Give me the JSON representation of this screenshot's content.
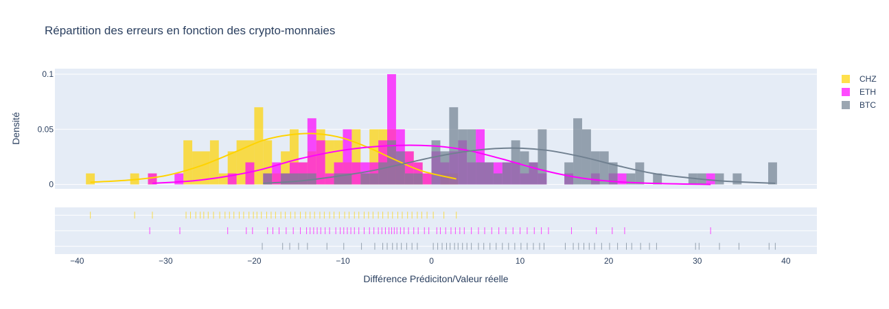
{
  "chart_data": {
    "type": "histogram",
    "title": "Répartition des erreurs en fonction des crypto-monnaies",
    "xlabel": "Différence Prédiciton/Valeur réelle",
    "ylabel": "Densité",
    "xlim": [
      -42.5,
      43.5
    ],
    "ylim": [
      -0.004,
      0.105
    ],
    "x_ticks": [
      "−40",
      "−30",
      "−20",
      "−10",
      "0",
      "10",
      "20",
      "30",
      "40"
    ],
    "x_tick_values": [
      -40,
      -30,
      -20,
      -10,
      0,
      10,
      20,
      30,
      40
    ],
    "y_ticks": [
      "0",
      "0.05",
      "0.1"
    ],
    "y_tick_values": [
      0,
      0.05,
      0.1
    ],
    "grid": true,
    "legend_position": "top-right",
    "bin_width": 1,
    "series": [
      {
        "name": "CHZ",
        "color": "#FFD300",
        "bins": [
          [
            -38.5,
            0.01
          ],
          [
            -33.5,
            0.01
          ],
          [
            -31.5,
            0.01
          ],
          [
            -27.5,
            0.04
          ],
          [
            -26.5,
            0.03
          ],
          [
            -25.5,
            0.03
          ],
          [
            -24.5,
            0.04
          ],
          [
            -23.5,
            0.01
          ],
          [
            -22.5,
            0.03
          ],
          [
            -21.5,
            0.04
          ],
          [
            -20.5,
            0.04
          ],
          [
            -19.5,
            0.07
          ],
          [
            -18.5,
            0.04
          ],
          [
            -17.5,
            0.01
          ],
          [
            -16.5,
            0.03
          ],
          [
            -15.5,
            0.05
          ],
          [
            -14.5,
            0.02
          ],
          [
            -13.5,
            0.03
          ],
          [
            -12.5,
            0.05
          ],
          [
            -11.5,
            0.04
          ],
          [
            -10.5,
            0.04
          ],
          [
            -9.5,
            0.02
          ],
          [
            -8.5,
            0.05
          ],
          [
            -7.5,
            0.01
          ],
          [
            -6.5,
            0.05
          ],
          [
            -5.5,
            0.05
          ],
          [
            -4.5,
            0.05
          ],
          [
            -3.5,
            0.02
          ],
          [
            -2.5,
            0.03
          ],
          [
            -1.5,
            0.02
          ],
          [
            -0.5,
            0.01
          ],
          [
            1.5,
            0.01
          ],
          [
            2.5,
            0.01
          ]
        ],
        "kde": [
          [
            -38.5,
            0.002
          ],
          [
            -34,
            0.004
          ],
          [
            -30,
            0.008
          ],
          [
            -26,
            0.017
          ],
          [
            -22,
            0.03
          ],
          [
            -19,
            0.04
          ],
          [
            -16,
            0.045
          ],
          [
            -13,
            0.046
          ],
          [
            -10,
            0.042
          ],
          [
            -7,
            0.033
          ],
          [
            -4,
            0.022
          ],
          [
            -1,
            0.012
          ],
          [
            2.8,
            0.005
          ]
        ],
        "rug": [
          -38.5,
          -33.5,
          -31.5,
          -27.7,
          -27.2,
          -26.6,
          -26.1,
          -25.7,
          -25.2,
          -24.6,
          -23.9,
          -23.3,
          -22.8,
          -22.3,
          -21.7,
          -21.2,
          -20.6,
          -20.1,
          -19.7,
          -19.2,
          -18.6,
          -18.1,
          -17.6,
          -17.0,
          -16.5,
          -15.9,
          -15.4,
          -14.8,
          -14.2,
          -13.7,
          -13.2,
          -12.6,
          -12.1,
          -11.5,
          -11.0,
          -10.4,
          -9.8,
          -9.3,
          -8.7,
          -8.2,
          -7.6,
          -7.1,
          -6.6,
          -6.0,
          -5.5,
          -4.9,
          -4.4,
          -3.8,
          -3.3,
          -2.7,
          -2.2,
          -1.6,
          -1.1,
          -0.5,
          0.2,
          1.4,
          2.8
        ]
      },
      {
        "name": "ETH",
        "color": "#FF00FF",
        "bins": [
          [
            -31.5,
            0.01
          ],
          [
            -28.5,
            0.01
          ],
          [
            -22.5,
            0.01
          ],
          [
            -20.5,
            0.02
          ],
          [
            -18.5,
            0.01
          ],
          [
            -17.5,
            0.02
          ],
          [
            -16.5,
            0.01
          ],
          [
            -15.5,
            0.02
          ],
          [
            -14.5,
            0.02
          ],
          [
            -13.5,
            0.06
          ],
          [
            -12.5,
            0.04
          ],
          [
            -11.5,
            0.01
          ],
          [
            -10.5,
            0.02
          ],
          [
            -9.5,
            0.05
          ],
          [
            -8.5,
            0.02
          ],
          [
            -7.5,
            0.02
          ],
          [
            -6.5,
            0.02
          ],
          [
            -5.5,
            0.04
          ],
          [
            -4.5,
            0.1
          ],
          [
            -3.5,
            0.05
          ],
          [
            -2.5,
            0.03
          ],
          [
            -1.5,
            0.02
          ],
          [
            -0.5,
            0.01
          ],
          [
            0.5,
            0.03
          ],
          [
            1.5,
            0.02
          ],
          [
            2.5,
            0.03
          ],
          [
            3.5,
            0.04
          ],
          [
            4.5,
            0.02
          ],
          [
            5.5,
            0.05
          ],
          [
            6.5,
            0.02
          ],
          [
            7.5,
            0.02
          ],
          [
            8.5,
            0.02
          ],
          [
            9.5,
            0.02
          ],
          [
            10.5,
            0.01
          ],
          [
            11.5,
            0.02
          ],
          [
            12.5,
            0.01
          ],
          [
            15.5,
            0.01
          ],
          [
            18.5,
            0.01
          ],
          [
            20.5,
            0.01
          ],
          [
            21.5,
            0.01
          ],
          [
            31.5,
            0.01
          ]
        ],
        "kde": [
          [
            -31.5,
            0.001
          ],
          [
            -26,
            0.004
          ],
          [
            -20,
            0.012
          ],
          [
            -15,
            0.023
          ],
          [
            -10,
            0.031
          ],
          [
            -5,
            0.035
          ],
          [
            0,
            0.035
          ],
          [
            4,
            0.031
          ],
          [
            8,
            0.023
          ],
          [
            12,
            0.014
          ],
          [
            16,
            0.007
          ],
          [
            20,
            0.003
          ],
          [
            25,
            0.001
          ],
          [
            31.5,
            0.0
          ]
        ],
        "rug": [
          -31.8,
          -28.4,
          -23.0,
          -20.9,
          -20.2,
          -18.5,
          -17.9,
          -17.2,
          -16.4,
          -15.6,
          -14.8,
          -14.1,
          -13.7,
          -13.3,
          -12.9,
          -12.5,
          -12.0,
          -11.5,
          -10.8,
          -10.3,
          -9.9,
          -9.5,
          -9.1,
          -8.7,
          -8.2,
          -7.6,
          -7.0,
          -6.5,
          -6.0,
          -5.6,
          -5.2,
          -4.8,
          -4.5,
          -4.2,
          -3.9,
          -3.5,
          -3.1,
          -2.6,
          -2.0,
          -1.5,
          -0.8,
          -0.3,
          0.6,
          1.0,
          1.6,
          2.2,
          2.7,
          3.2,
          3.7,
          4.5,
          5.3,
          6.0,
          6.8,
          7.6,
          8.4,
          9.2,
          10.0,
          10.8,
          11.6,
          12.4,
          13.2,
          15.8,
          18.6,
          20.4,
          21.8,
          31.5
        ]
      },
      {
        "name": "BTC",
        "color": "#708090",
        "bins": [
          [
            -18.5,
            0.01
          ],
          [
            -16.5,
            0.01
          ],
          [
            -15.5,
            0.01
          ],
          [
            -14.5,
            0.01
          ],
          [
            -13.5,
            0.01
          ],
          [
            -10.5,
            0.01
          ],
          [
            -9.5,
            0.01
          ],
          [
            -7.5,
            0.01
          ],
          [
            -6.5,
            0.01
          ],
          [
            -5.5,
            0.02
          ],
          [
            -4.5,
            0.04
          ],
          [
            -3.5,
            0.03
          ],
          [
            -2.5,
            0.01
          ],
          [
            -1.5,
            0.01
          ],
          [
            0.5,
            0.04
          ],
          [
            1.5,
            0.03
          ],
          [
            2.5,
            0.07
          ],
          [
            3.5,
            0.05
          ],
          [
            4.5,
            0.05
          ],
          [
            5.5,
            0.02
          ],
          [
            6.5,
            0.02
          ],
          [
            7.5,
            0.01
          ],
          [
            8.5,
            0.02
          ],
          [
            9.5,
            0.04
          ],
          [
            10.5,
            0.03
          ],
          [
            11.5,
            0.02
          ],
          [
            12.5,
            0.05
          ],
          [
            15.5,
            0.02
          ],
          [
            16.5,
            0.06
          ],
          [
            17.5,
            0.05
          ],
          [
            18.5,
            0.03
          ],
          [
            19.5,
            0.03
          ],
          [
            20.5,
            0.02
          ],
          [
            22.5,
            0.01
          ],
          [
            23.5,
            0.02
          ],
          [
            25.5,
            0.01
          ],
          [
            29.5,
            0.01
          ],
          [
            30.5,
            0.01
          ],
          [
            32.5,
            0.01
          ],
          [
            34.5,
            0.01
          ],
          [
            38.5,
            0.02
          ]
        ],
        "kde": [
          [
            -19,
            0.001
          ],
          [
            -15,
            0.003
          ],
          [
            -11,
            0.007
          ],
          [
            -7,
            0.012
          ],
          [
            -3,
            0.019
          ],
          [
            1,
            0.026
          ],
          [
            5,
            0.031
          ],
          [
            9,
            0.033
          ],
          [
            13,
            0.031
          ],
          [
            17,
            0.025
          ],
          [
            21,
            0.017
          ],
          [
            25,
            0.01
          ],
          [
            29,
            0.006
          ],
          [
            33,
            0.003
          ],
          [
            38.8,
            0.001
          ]
        ],
        "rug": [
          -19.1,
          -16.8,
          -16.0,
          -15.0,
          -14.0,
          -11.8,
          -9.9,
          -7.9,
          -6.4,
          -5.5,
          -5.0,
          -4.4,
          -3.9,
          -3.4,
          -2.8,
          -2.2,
          -1.6,
          0.2,
          0.7,
          1.2,
          1.7,
          2.1,
          2.6,
          3.0,
          3.5,
          4.0,
          4.5,
          5.3,
          5.9,
          6.6,
          7.3,
          8.0,
          8.7,
          9.4,
          10.1,
          10.8,
          11.5,
          12.2,
          12.7,
          15.1,
          16.0,
          16.6,
          17.2,
          17.8,
          18.4,
          19.2,
          20.1,
          21.0,
          22.0,
          22.6,
          23.6,
          24.6,
          25.4,
          29.8,
          30.2,
          32.5,
          34.7,
          38.1,
          38.8
        ]
      }
    ]
  }
}
